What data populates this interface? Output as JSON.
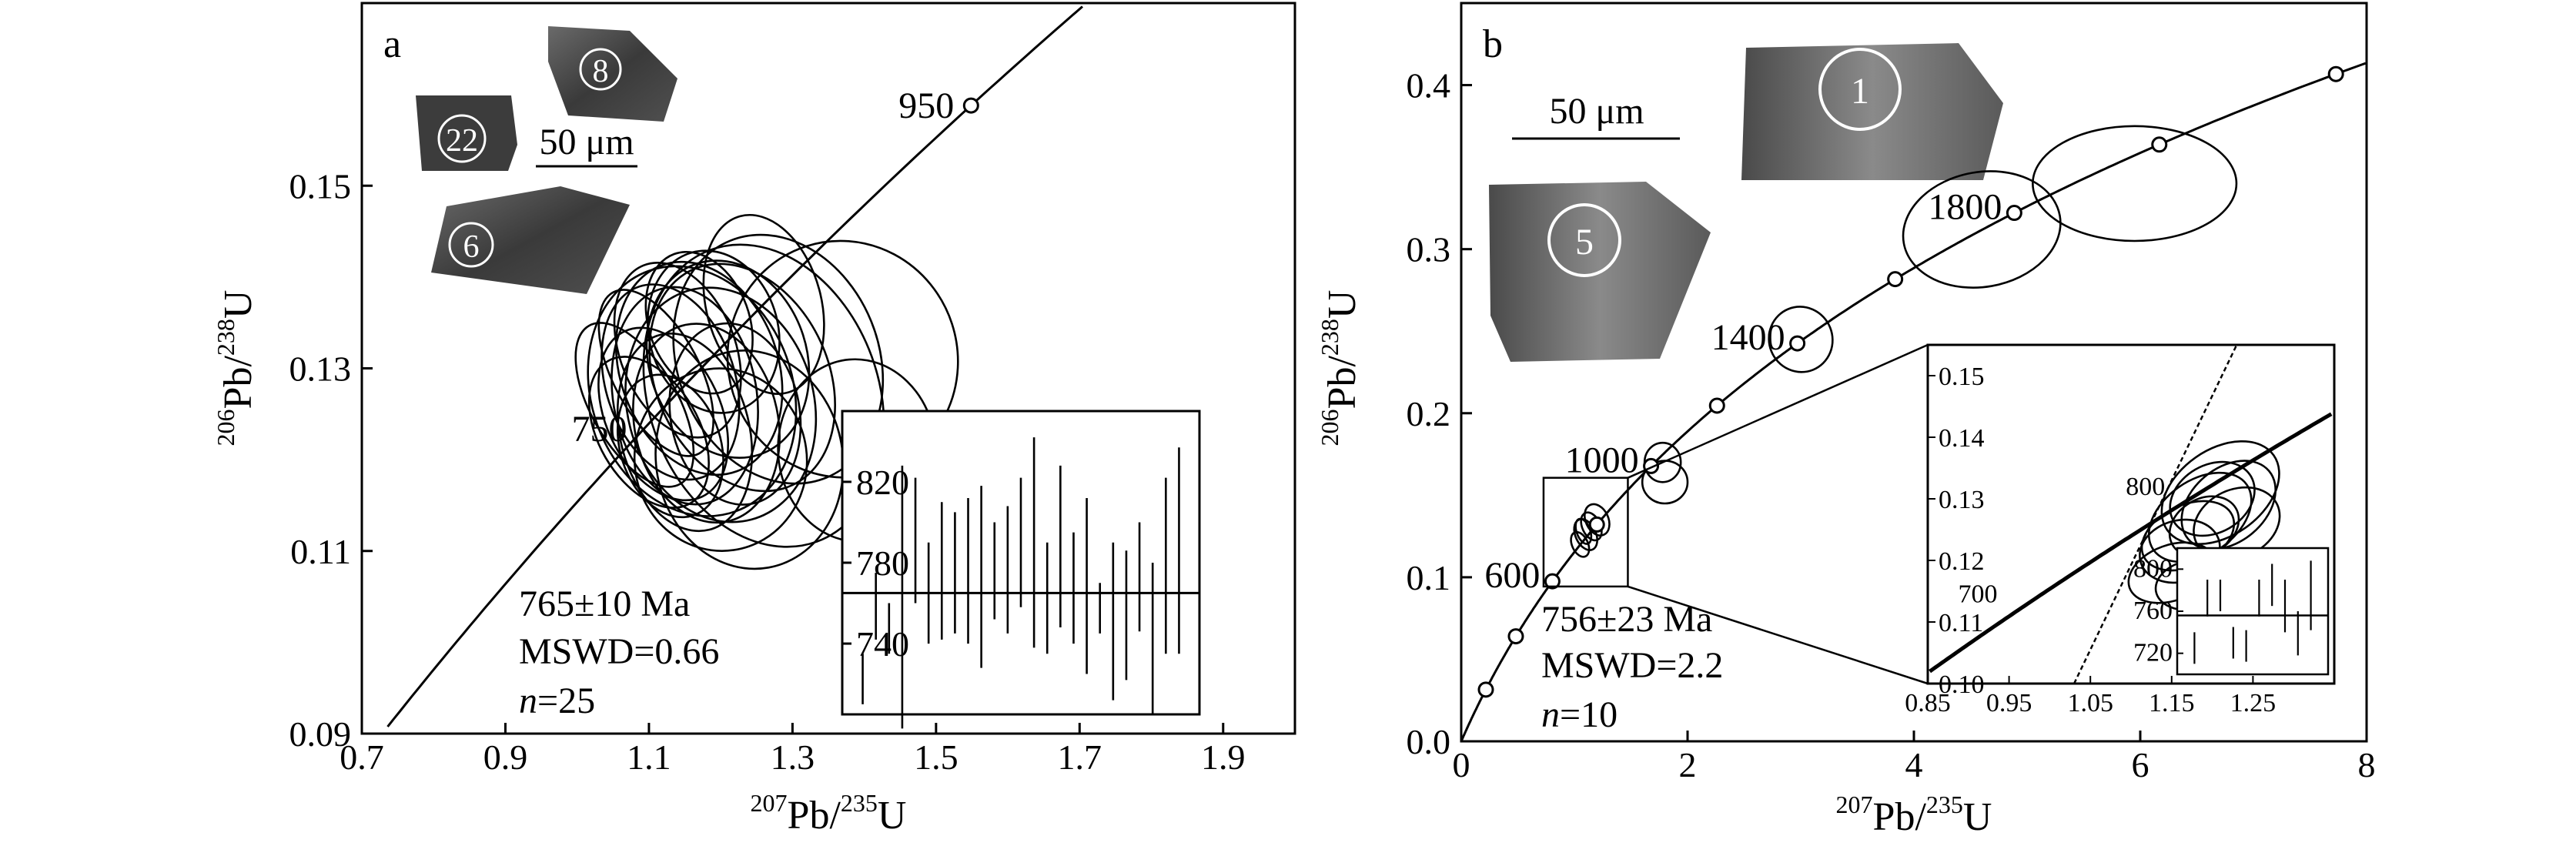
{
  "chart_data": [
    {
      "panel": "a",
      "type": "scatter",
      "subtype": "concordia",
      "xlabel_sup": "207",
      "xlabel_main": "Pb/",
      "xlabel_sup2": "235",
      "xlabel_tail": "U",
      "ylabel_sup": "206",
      "ylabel_main": "Pb/",
      "ylabel_sup2": "238",
      "ylabel_tail": "U",
      "xlim": [
        0.7,
        2.0
      ],
      "ylim": [
        0.09,
        0.17
      ],
      "xticks": [
        0.7,
        0.9,
        1.1,
        1.3,
        1.5,
        1.7,
        1.9
      ],
      "xtick_labels": [
        "0.7",
        "0.9",
        "1.1",
        "1.3",
        "1.5",
        "1.7",
        "1.9"
      ],
      "yticks": [
        0.09,
        0.11,
        0.13,
        0.15
      ],
      "ytick_labels": [
        "0.09",
        "0.11",
        "0.13",
        "0.15"
      ],
      "age_labels": [
        {
          "age": 950,
          "text": "950"
        },
        {
          "age": 750,
          "text": "750"
        }
      ],
      "age_markers": [
        950
      ],
      "ellipses": [
        {
          "x": 1.13,
          "y": 0.1285,
          "rx": 0.09,
          "ry": 0.011,
          "rot": -18
        },
        {
          "x": 1.17,
          "y": 0.13,
          "rx": 0.11,
          "ry": 0.012,
          "rot": -20
        },
        {
          "x": 1.2,
          "y": 0.126,
          "rx": 0.13,
          "ry": 0.013,
          "rot": -15
        },
        {
          "x": 1.12,
          "y": 0.125,
          "rx": 0.08,
          "ry": 0.01,
          "rot": -25
        },
        {
          "x": 1.15,
          "y": 0.127,
          "rx": 0.1,
          "ry": 0.012,
          "rot": -10
        },
        {
          "x": 1.1,
          "y": 0.123,
          "rx": 0.07,
          "ry": 0.009,
          "rot": -30
        },
        {
          "x": 1.21,
          "y": 0.131,
          "rx": 0.11,
          "ry": 0.011,
          "rot": -18
        },
        {
          "x": 1.14,
          "y": 0.132,
          "rx": 0.08,
          "ry": 0.01,
          "rot": -22
        },
        {
          "x": 1.18,
          "y": 0.124,
          "rx": 0.1,
          "ry": 0.011,
          "rot": -12
        },
        {
          "x": 1.16,
          "y": 0.1275,
          "rx": 0.14,
          "ry": 0.014,
          "rot": -20
        },
        {
          "x": 1.23,
          "y": 0.129,
          "rx": 0.12,
          "ry": 0.013,
          "rot": -25
        },
        {
          "x": 1.11,
          "y": 0.1295,
          "rx": 0.06,
          "ry": 0.01,
          "rot": -28
        },
        {
          "x": 1.26,
          "y": 0.127,
          "rx": 0.16,
          "ry": 0.017,
          "rot": -20
        },
        {
          "x": 1.24,
          "y": 0.12,
          "rx": 0.13,
          "ry": 0.012,
          "rot": -10
        },
        {
          "x": 1.19,
          "y": 0.134,
          "rx": 0.09,
          "ry": 0.009,
          "rot": -15
        },
        {
          "x": 1.13,
          "y": 0.1215,
          "rx": 0.07,
          "ry": 0.008,
          "rot": -18
        },
        {
          "x": 1.08,
          "y": 0.126,
          "rx": 0.06,
          "ry": 0.01,
          "rot": -30
        },
        {
          "x": 1.22,
          "y": 0.125,
          "rx": 0.09,
          "ry": 0.01,
          "rot": -10
        },
        {
          "x": 1.17,
          "y": 0.135,
          "rx": 0.07,
          "ry": 0.008,
          "rot": -20
        },
        {
          "x": 1.28,
          "y": 0.131,
          "rx": 0.14,
          "ry": 0.014,
          "rot": -22
        },
        {
          "x": 1.15,
          "y": 0.123,
          "rx": 0.09,
          "ry": 0.011,
          "rot": -14
        },
        {
          "x": 1.2,
          "y": 0.12,
          "rx": 0.12,
          "ry": 0.01,
          "rot": -8
        },
        {
          "x": 1.37,
          "y": 0.131,
          "rx": 0.16,
          "ry": 0.013,
          "rot": -18
        },
        {
          "x": 1.26,
          "y": 0.137,
          "rx": 0.08,
          "ry": 0.01,
          "rot": -15
        },
        {
          "x": 1.39,
          "y": 0.121,
          "rx": 0.11,
          "ry": 0.01,
          "rot": -5
        }
      ],
      "result": {
        "age": "765±10 Ma",
        "mswd": "MSWD=0.66",
        "n_label": "n",
        "n_value": "=25"
      },
      "inset": {
        "type": "bar",
        "ylim": [
          705,
          855
        ],
        "yticks": [
          740,
          780,
          820
        ],
        "ytick_labels": [
          "740",
          "780",
          "820"
        ],
        "mean": 765,
        "bars": [
          [
            710,
            735
          ],
          [
            742,
            775
          ],
          [
            735,
            760
          ],
          [
            698,
            828
          ],
          [
            760,
            822
          ],
          [
            740,
            790
          ],
          [
            742,
            810
          ],
          [
            745,
            805
          ],
          [
            740,
            812
          ],
          [
            728,
            818
          ],
          [
            752,
            800
          ],
          [
            745,
            808
          ],
          [
            758,
            822
          ],
          [
            738,
            842
          ],
          [
            735,
            790
          ],
          [
            748,
            828
          ],
          [
            740,
            795
          ],
          [
            725,
            812
          ],
          [
            745,
            770
          ],
          [
            712,
            790
          ],
          [
            722,
            786
          ],
          [
            746,
            800
          ],
          [
            705,
            780
          ],
          [
            735,
            822
          ],
          [
            735,
            837
          ]
        ]
      },
      "zircon_labels": [
        "8",
        "22",
        "6"
      ],
      "scale_bar": "50 μm"
    },
    {
      "panel": "b",
      "type": "scatter",
      "subtype": "concordia",
      "xlabel_sup": "207",
      "xlabel_main": "Pb/",
      "xlabel_sup2": "235",
      "xlabel_tail": "U",
      "ylabel_sup": "206",
      "ylabel_main": "Pb/",
      "ylabel_sup2": "238",
      "ylabel_tail": "U",
      "xlim": [
        0,
        8
      ],
      "ylim": [
        0.0,
        0.45
      ],
      "xticks": [
        0,
        2,
        4,
        6,
        8
      ],
      "xtick_labels": [
        "0",
        "2",
        "4",
        "6",
        "8"
      ],
      "yticks": [
        0.0,
        0.1,
        0.2,
        0.3,
        0.4
      ],
      "ytick_labels": [
        "0.0",
        "0.1",
        "0.2",
        "0.3",
        "0.4"
      ],
      "age_labels": [
        {
          "age": 600,
          "text": "600"
        },
        {
          "age": 1000,
          "text": "1000"
        },
        {
          "age": 1400,
          "text": "1400"
        },
        {
          "age": 1800,
          "text": "1800"
        }
      ],
      "age_markers": [
        200,
        400,
        600,
        800,
        1000,
        1200,
        1400,
        1600,
        1800,
        2000,
        2200
      ],
      "ellipses": [
        {
          "x": 1.05,
          "y": 0.12,
          "rx": 0.07,
          "ry": 0.008,
          "rot": -25
        },
        {
          "x": 1.1,
          "y": 0.126,
          "rx": 0.09,
          "ry": 0.01,
          "rot": -25
        },
        {
          "x": 1.15,
          "y": 0.131,
          "rx": 0.08,
          "ry": 0.009,
          "rot": -25
        },
        {
          "x": 1.2,
          "y": 0.135,
          "rx": 0.1,
          "ry": 0.01,
          "rot": -25
        },
        {
          "x": 1.08,
          "y": 0.128,
          "rx": 0.06,
          "ry": 0.008,
          "rot": -20
        },
        {
          "x": 1.78,
          "y": 0.17,
          "rx": 0.16,
          "ry": 0.012,
          "rot": 0
        },
        {
          "x": 1.8,
          "y": 0.158,
          "rx": 0.2,
          "ry": 0.013,
          "rot": 0
        },
        {
          "x": 3.0,
          "y": 0.245,
          "rx": 0.28,
          "ry": 0.02,
          "rot": -22
        },
        {
          "x": 4.6,
          "y": 0.312,
          "rx": 0.7,
          "ry": 0.035,
          "rot": -10
        },
        {
          "x": 5.95,
          "y": 0.34,
          "rx": 0.9,
          "ry": 0.035,
          "rot": 0
        }
      ],
      "result": {
        "age": "756±23 Ma",
        "mswd": "MSWD=2.2",
        "n_label": "n",
        "n_value": "=10"
      },
      "zoom_inset": {
        "xlim": [
          0.85,
          1.35
        ],
        "ylim": [
          0.1,
          0.155
        ],
        "xticks": [
          0.85,
          0.95,
          1.05,
          1.15,
          1.25
        ],
        "xtick_labels": [
          "0.85",
          "0.95",
          "1.05",
          "1.15",
          "1.25"
        ],
        "yticks": [
          0.1,
          0.11,
          0.12,
          0.13,
          0.14,
          0.15
        ],
        "ytick_labels": [
          "0.10",
          "0.11",
          "0.12",
          "0.13",
          "0.14",
          "0.15"
        ],
        "age_labels": [
          {
            "age": 700,
            "text": "700"
          },
          {
            "age": 800,
            "text": "800"
          }
        ],
        "ellipses": [
          {
            "x": 1.2,
            "y": 0.13,
            "rx": 0.055,
            "ry": 0.0055,
            "rot": -30
          },
          {
            "x": 1.185,
            "y": 0.127,
            "rx": 0.07,
            "ry": 0.006,
            "rot": -35
          },
          {
            "x": 1.17,
            "y": 0.124,
            "rx": 0.06,
            "ry": 0.005,
            "rot": -25
          },
          {
            "x": 1.15,
            "y": 0.118,
            "rx": 0.055,
            "ry": 0.0045,
            "rot": -20
          },
          {
            "x": 1.21,
            "y": 0.131,
            "rx": 0.08,
            "ry": 0.007,
            "rot": -35
          },
          {
            "x": 1.19,
            "y": 0.1255,
            "rx": 0.045,
            "ry": 0.0045,
            "rot": -30
          },
          {
            "x": 1.22,
            "y": 0.129,
            "rx": 0.065,
            "ry": 0.006,
            "rot": -40
          },
          {
            "x": 1.16,
            "y": 0.1215,
            "rx": 0.05,
            "ry": 0.005,
            "rot": -15
          },
          {
            "x": 1.23,
            "y": 0.126,
            "rx": 0.055,
            "ry": 0.0055,
            "rot": -25
          },
          {
            "x": 1.175,
            "y": 0.116,
            "rx": 0.045,
            "ry": 0.004,
            "rot": -10
          }
        ],
        "bar_inset": {
          "ylim": [
            700,
            820
          ],
          "yticks": [
            720,
            760,
            800
          ],
          "ytick_labels": [
            "720",
            "760",
            "800"
          ],
          "mean": 756,
          "bars": [
            [
              710,
              740
            ],
            [
              755,
              790
            ],
            [
              760,
              790
            ],
            [
              715,
              745
            ],
            [
              712,
              742
            ],
            [
              755,
              790
            ],
            [
              765,
              805
            ],
            [
              740,
              790
            ],
            [
              718,
              760
            ],
            [
              742,
              808
            ]
          ]
        }
      },
      "zircon_labels": [
        "1",
        "5"
      ],
      "scale_bar": "50 μm"
    }
  ],
  "panel_labels": {
    "a": "a",
    "b": "b"
  }
}
